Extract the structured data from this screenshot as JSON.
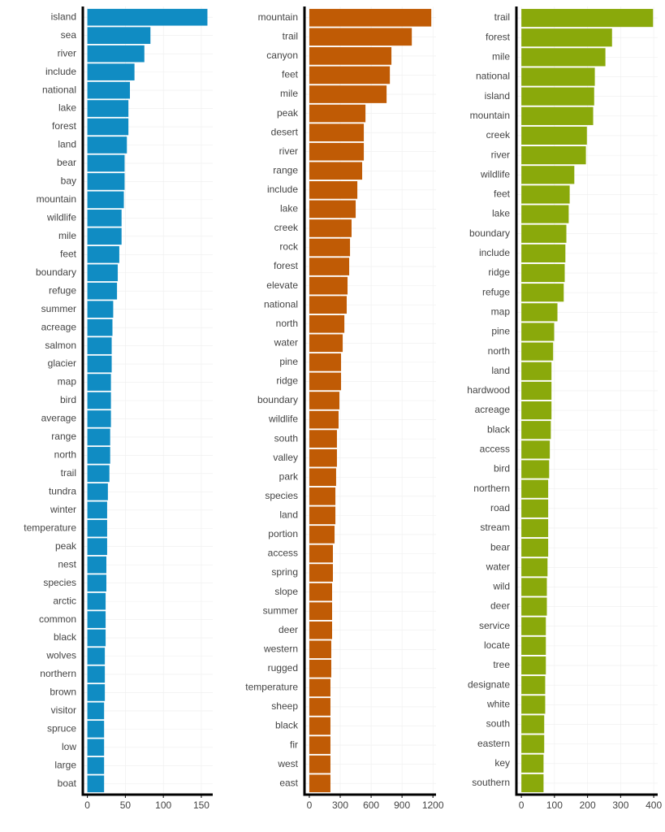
{
  "chart_data": [
    {
      "type": "bar",
      "orientation": "horizontal",
      "color": "#108cc3",
      "grid": true,
      "categories": [
        "island",
        "sea",
        "river",
        "include",
        "national",
        "lake",
        "forest",
        "land",
        "bear",
        "bay",
        "mountain",
        "wildlife",
        "mile",
        "feet",
        "boundary",
        "refuge",
        "summer",
        "acreage",
        "salmon",
        "glacier",
        "map",
        "bird",
        "average",
        "range",
        "north",
        "trail",
        "tundra",
        "winter",
        "temperature",
        "peak",
        "nest",
        "species",
        "arctic",
        "common",
        "black",
        "wolves",
        "northern",
        "brown",
        "visitor",
        "spruce",
        "low",
        "large",
        "boat"
      ],
      "values": [
        158,
        83,
        75,
        62,
        56,
        54,
        54,
        52,
        49,
        49,
        48,
        45,
        45,
        42,
        40,
        39,
        34,
        33,
        32,
        32,
        31,
        31,
        31,
        30,
        30,
        29,
        27,
        26,
        26,
        26,
        25,
        25,
        24,
        24,
        24,
        23,
        23,
        23,
        22,
        22,
        22,
        22,
        22
      ],
      "xlim": [
        -6,
        165
      ],
      "xticks": [
        0,
        50,
        100,
        150
      ]
    },
    {
      "type": "bar",
      "orientation": "horizontal",
      "color": "#c05b05",
      "grid": true,
      "categories": [
        "mountain",
        "trail",
        "canyon",
        "feet",
        "mile",
        "peak",
        "desert",
        "river",
        "range",
        "include",
        "lake",
        "creek",
        "rock",
        "forest",
        "elevate",
        "national",
        "north",
        "water",
        "pine",
        "ridge",
        "boundary",
        "wildlife",
        "south",
        "valley",
        "park",
        "species",
        "land",
        "portion",
        "access",
        "spring",
        "slope",
        "summer",
        "deer",
        "western",
        "rugged",
        "temperature",
        "sheep",
        "black",
        "fir",
        "west",
        "east"
      ],
      "values": [
        1184,
        995,
        797,
        782,
        750,
        545,
        529,
        529,
        513,
        466,
        450,
        410,
        395,
        387,
        371,
        363,
        340,
        324,
        308,
        308,
        292,
        284,
        268,
        268,
        260,
        253,
        253,
        245,
        229,
        229,
        221,
        221,
        221,
        213,
        213,
        205,
        205,
        205,
        205,
        205,
        205
      ],
      "xlim": [
        -47,
        1230
      ],
      "xticks": [
        0,
        300,
        600,
        900,
        1200
      ]
    },
    {
      "type": "bar",
      "orientation": "horizontal",
      "color": "#8aa90b",
      "grid": true,
      "categories": [
        "trail",
        "forest",
        "mile",
        "national",
        "island",
        "mountain",
        "creek",
        "river",
        "wildlife",
        "feet",
        "lake",
        "boundary",
        "include",
        "ridge",
        "refuge",
        "map",
        "pine",
        "north",
        "land",
        "hardwood",
        "acreage",
        "black",
        "access",
        "bird",
        "northern",
        "road",
        "stream",
        "bear",
        "water",
        "wild",
        "deer",
        "service",
        "locate",
        "tree",
        "designate",
        "white",
        "south",
        "eastern",
        "key",
        "southern"
      ],
      "values": [
        398,
        274,
        254,
        222,
        220,
        217,
        198,
        195,
        160,
        146,
        143,
        136,
        133,
        131,
        128,
        109,
        99,
        96,
        91,
        91,
        91,
        89,
        86,
        84,
        81,
        81,
        81,
        81,
        79,
        77,
        77,
        74,
        74,
        74,
        72,
        72,
        69,
        69,
        67,
        67
      ],
      "xlim": [
        -15,
        412
      ],
      "xticks": [
        0,
        100,
        200,
        300,
        400
      ]
    }
  ]
}
